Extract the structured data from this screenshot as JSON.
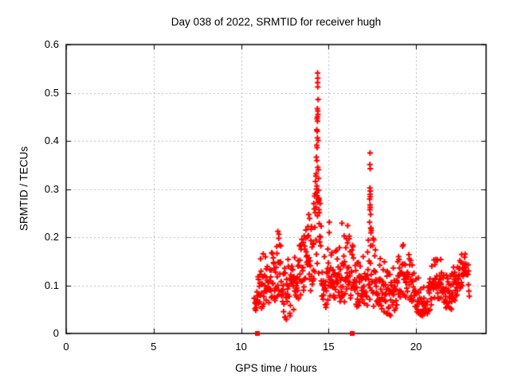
{
  "chart_data": {
    "type": "scatter",
    "title": "Day 038 of 2022, SRMTID for receiver hugh",
    "xlabel": "GPS time / hours",
    "ylabel": "SRMTID / TECUs",
    "xlim": [
      0,
      24
    ],
    "ylim": [
      0,
      0.6
    ],
    "x_ticks": [
      0,
      5,
      10,
      15,
      20
    ],
    "y_ticks": [
      0,
      0.1,
      0.2,
      0.3,
      0.4,
      0.5,
      0.6
    ],
    "grid": true,
    "legend": "none",
    "background": "#ffffff",
    "axis_color": "#000000",
    "grid_color": "#b9b9b9",
    "marker": {
      "shape": "plus",
      "color": "#ff0000",
      "size": 7,
      "stroke": 2
    },
    "data_model": {
      "description": "Dense red '+' scatter from ~10.75h to ~23.05h sampled ~every minute; band_envelope rows are [hour, min_value, max_value] of the visible point band; outlier_points are the discrete spike points read from the plot.",
      "sampling_start_hour": 10.75,
      "sampling_end_hour": 23.05,
      "sample_step_hours": 0.01667,
      "seed": 38,
      "band_envelope": [
        [
          10.75,
          0.045,
          0.1
        ],
        [
          11.0,
          0.03,
          0.14
        ],
        [
          11.25,
          0.05,
          0.18
        ],
        [
          11.5,
          0.06,
          0.16
        ],
        [
          11.8,
          0.05,
          0.17
        ],
        [
          12.05,
          0.07,
          0.21
        ],
        [
          12.3,
          0.06,
          0.19
        ],
        [
          12.55,
          0.02,
          0.13
        ],
        [
          12.8,
          0.03,
          0.18
        ],
        [
          13.1,
          0.05,
          0.16
        ],
        [
          13.4,
          0.07,
          0.19
        ],
        [
          13.7,
          0.09,
          0.23
        ],
        [
          13.95,
          0.08,
          0.22
        ],
        [
          14.15,
          0.09,
          0.26
        ],
        [
          14.3,
          0.1,
          0.4
        ],
        [
          14.45,
          0.1,
          0.42
        ],
        [
          14.6,
          0.06,
          0.22
        ],
        [
          14.8,
          0.04,
          0.15
        ],
        [
          15.0,
          0.06,
          0.22
        ],
        [
          15.25,
          0.06,
          0.19
        ],
        [
          15.5,
          0.04,
          0.18
        ],
        [
          15.75,
          0.07,
          0.225
        ],
        [
          16.0,
          0.04,
          0.2
        ],
        [
          16.2,
          0.05,
          0.215
        ],
        [
          16.45,
          0.05,
          0.17
        ],
        [
          16.7,
          0.05,
          0.16
        ],
        [
          16.95,
          0.04,
          0.19
        ],
        [
          17.15,
          0.05,
          0.16
        ],
        [
          17.35,
          0.06,
          0.235
        ],
        [
          17.55,
          0.05,
          0.2
        ],
        [
          17.8,
          0.04,
          0.17
        ],
        [
          18.1,
          0.04,
          0.16
        ],
        [
          18.45,
          0.03,
          0.12
        ],
        [
          18.75,
          0.03,
          0.14
        ],
        [
          19.0,
          0.06,
          0.16
        ],
        [
          19.3,
          0.07,
          0.19
        ],
        [
          19.55,
          0.06,
          0.17
        ],
        [
          19.8,
          0.05,
          0.14
        ],
        [
          20.05,
          0.04,
          0.12
        ],
        [
          20.35,
          0.03,
          0.1
        ],
        [
          20.6,
          0.025,
          0.09
        ],
        [
          20.85,
          0.05,
          0.14
        ],
        [
          21.1,
          0.06,
          0.16
        ],
        [
          21.4,
          0.07,
          0.16
        ],
        [
          21.7,
          0.05,
          0.13
        ],
        [
          22.0,
          0.04,
          0.12
        ],
        [
          22.3,
          0.07,
          0.16
        ],
        [
          22.55,
          0.09,
          0.19
        ],
        [
          22.8,
          0.09,
          0.18
        ],
        [
          23.05,
          0.07,
          0.14
        ]
      ],
      "outlier_points": [
        [
          14.37,
          0.541
        ],
        [
          14.38,
          0.53
        ],
        [
          14.37,
          0.521
        ],
        [
          14.38,
          0.512
        ],
        [
          14.4,
          0.486
        ],
        [
          14.36,
          0.467
        ],
        [
          14.38,
          0.462
        ],
        [
          14.39,
          0.455
        ],
        [
          14.36,
          0.45
        ],
        [
          14.34,
          0.446
        ],
        [
          14.37,
          0.441
        ],
        [
          14.32,
          0.423
        ],
        [
          14.35,
          0.42
        ],
        [
          14.36,
          0.406
        ],
        [
          14.4,
          0.401
        ],
        [
          14.32,
          0.391
        ],
        [
          14.34,
          0.386
        ],
        [
          14.3,
          0.366
        ],
        [
          14.33,
          0.359
        ],
        [
          14.38,
          0.345
        ],
        [
          14.41,
          0.34
        ],
        [
          14.29,
          0.332
        ],
        [
          14.42,
          0.322
        ],
        [
          14.33,
          0.306
        ],
        [
          14.31,
          0.3
        ],
        [
          14.43,
          0.281
        ],
        [
          14.44,
          0.276
        ],
        [
          14.28,
          0.262
        ],
        [
          14.45,
          0.257
        ],
        [
          14.47,
          0.251
        ],
        [
          14.24,
          0.29
        ],
        [
          14.2,
          0.285
        ],
        [
          14.15,
          0.27
        ],
        [
          17.37,
          0.375
        ],
        [
          17.36,
          0.351
        ],
        [
          17.38,
          0.342
        ],
        [
          17.36,
          0.302
        ],
        [
          17.38,
          0.296
        ],
        [
          17.37,
          0.289
        ],
        [
          17.38,
          0.284
        ],
        [
          17.35,
          0.279
        ],
        [
          17.37,
          0.267
        ],
        [
          17.38,
          0.262
        ],
        [
          17.36,
          0.257
        ],
        [
          17.4,
          0.247
        ],
        [
          17.34,
          0.231
        ],
        [
          17.41,
          0.219
        ],
        [
          17.42,
          0.209
        ],
        [
          12.1,
          0.212
        ],
        [
          12.16,
          0.206
        ],
        [
          13.86,
          0.247
        ],
        [
          13.91,
          0.239
        ],
        [
          15.04,
          0.231
        ],
        [
          15.76,
          0.229
        ],
        [
          16.09,
          0.224
        ]
      ],
      "baseline_markers": {
        "shape": "filled-square",
        "color": "#ff0000",
        "y": 0,
        "x": [
          10.93,
          16.34
        ]
      }
    }
  }
}
